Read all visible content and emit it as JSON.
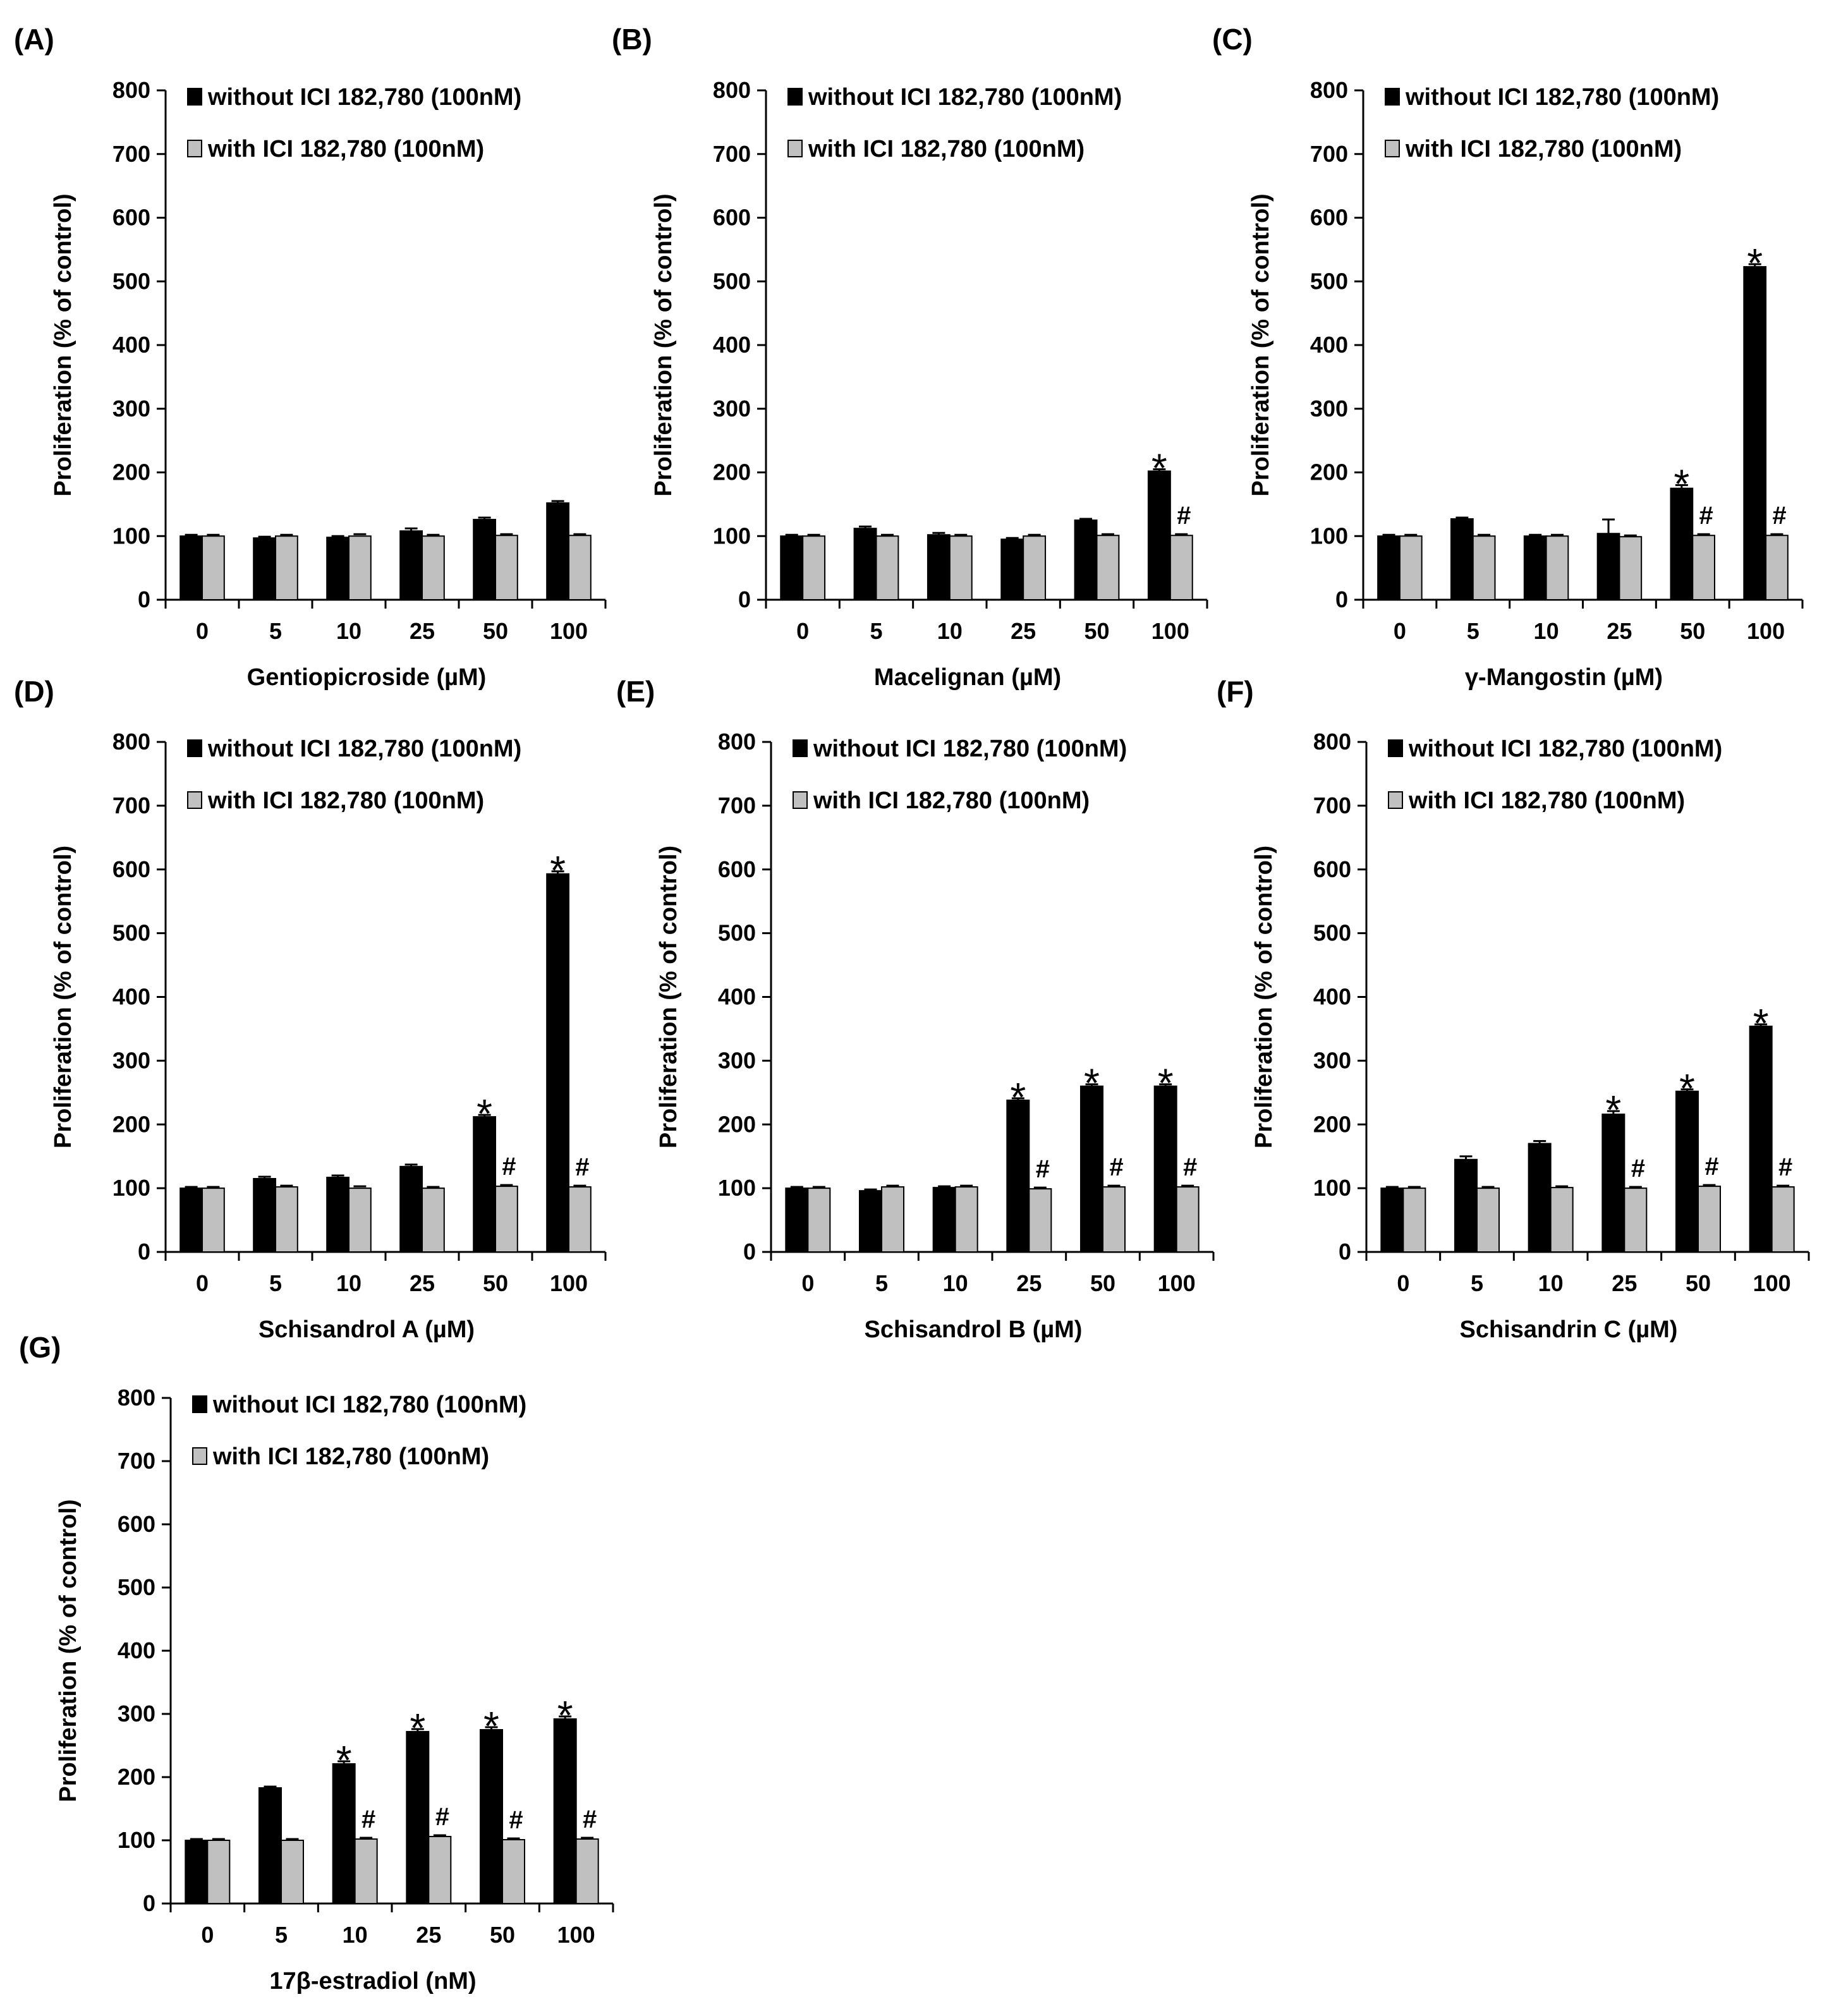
{
  "figure": {
    "colors": {
      "without": "#000000",
      "with": "#c0c0c0",
      "axis": "#000000"
    },
    "legend": {
      "without": "without ICI 182,780 (100nM)",
      "with": "with ICI 182,780 (100nM)"
    },
    "star_symbol": "*",
    "hash_symbol": "#"
  },
  "chart_data": [
    {
      "id": "A",
      "panel_label": "(A)",
      "type": "bar",
      "xlabel": "Gentiopicroside (µM)",
      "ylabel": "Proliferation (% of control)",
      "ylim": [
        0,
        800
      ],
      "yticks": [
        "0",
        "100",
        "200",
        "300",
        "400",
        "500",
        "600",
        "700",
        "800"
      ],
      "categories": [
        "0",
        "5",
        "10",
        "25",
        "50",
        "100"
      ],
      "series": [
        {
          "name": "without ICI 182,780 (100nM)",
          "values": [
            100,
            97,
            98,
            108,
            126,
            152
          ],
          "errors": [
            2,
            2,
            2,
            4,
            3,
            3
          ]
        },
        {
          "name": "with ICI 182,780 (100nM)",
          "values": [
            100,
            100,
            100,
            100,
            101,
            101
          ],
          "errors": [
            2,
            2,
            3,
            2,
            2,
            2
          ]
        }
      ],
      "stars": [
        false,
        false,
        false,
        false,
        false,
        false
      ],
      "hashes": [
        false,
        false,
        false,
        false,
        false,
        false
      ]
    },
    {
      "id": "B",
      "panel_label": "(B)",
      "type": "bar",
      "xlabel": "Macelignan (µM)",
      "ylabel": "Proliferation (% of control)",
      "ylim": [
        0,
        800
      ],
      "yticks": [
        "0",
        "100",
        "200",
        "300",
        "400",
        "500",
        "600",
        "700",
        "800"
      ],
      "categories": [
        "0",
        "5",
        "10",
        "25",
        "50",
        "100"
      ],
      "series": [
        {
          "name": "without ICI 182,780 (100nM)",
          "values": [
            100,
            112,
            102,
            95,
            125,
            202
          ],
          "errors": [
            2,
            3,
            3,
            2,
            2,
            3
          ]
        },
        {
          "name": "with ICI 182,780 (100nM)",
          "values": [
            100,
            100,
            100,
            100,
            101,
            101
          ],
          "errors": [
            2,
            2,
            2,
            2,
            2,
            2
          ]
        }
      ],
      "stars": [
        false,
        false,
        false,
        false,
        false,
        true
      ],
      "hashes": [
        false,
        false,
        false,
        false,
        false,
        true
      ]
    },
    {
      "id": "C",
      "panel_label": "(C)",
      "type": "bar",
      "xlabel": "γ-Mangostin (µM)",
      "ylabel": "Proliferation (% of control)",
      "ylim": [
        0,
        800
      ],
      "yticks": [
        "0",
        "100",
        "200",
        "300",
        "400",
        "500",
        "600",
        "700",
        "800"
      ],
      "categories": [
        "0",
        "5",
        "10",
        "25",
        "50",
        "100"
      ],
      "series": [
        {
          "name": "without ICI 182,780 (100nM)",
          "values": [
            100,
            127,
            100,
            104,
            175,
            523
          ],
          "errors": [
            2,
            2,
            2,
            22,
            5,
            4
          ]
        },
        {
          "name": "with ICI 182,780 (100nM)",
          "values": [
            100,
            100,
            100,
            99,
            101,
            101
          ],
          "errors": [
            2,
            2,
            2,
            2,
            2,
            2
          ]
        }
      ],
      "stars": [
        false,
        false,
        false,
        false,
        true,
        true
      ],
      "hashes": [
        false,
        false,
        false,
        false,
        true,
        true
      ]
    },
    {
      "id": "D",
      "panel_label": "(D)",
      "type": "bar",
      "xlabel": "Schisandrol A (µM)",
      "ylabel": "Proliferation (% of control)",
      "ylim": [
        0,
        800
      ],
      "yticks": [
        "0",
        "100",
        "200",
        "300",
        "400",
        "500",
        "600",
        "700",
        "800"
      ],
      "categories": [
        "0",
        "5",
        "10",
        "25",
        "50",
        "100"
      ],
      "series": [
        {
          "name": "without ICI 182,780 (100nM)",
          "values": [
            100,
            115,
            117,
            134,
            212,
            593
          ],
          "errors": [
            2,
            3,
            3,
            3,
            3,
            4
          ]
        },
        {
          "name": "with ICI 182,780 (100nM)",
          "values": [
            100,
            102,
            100,
            100,
            103,
            102
          ],
          "errors": [
            2,
            2,
            3,
            2,
            2,
            2
          ]
        }
      ],
      "stars": [
        false,
        false,
        false,
        false,
        true,
        true
      ],
      "hashes": [
        false,
        false,
        false,
        false,
        true,
        true
      ]
    },
    {
      "id": "E",
      "panel_label": "(E)",
      "type": "bar",
      "xlabel": "Schisandrol B (µM)",
      "ylabel": "Proliferation (% of control)",
      "ylim": [
        0,
        800
      ],
      "yticks": [
        "0",
        "100",
        "200",
        "300",
        "400",
        "500",
        "600",
        "700",
        "800"
      ],
      "categories": [
        "0",
        "5",
        "10",
        "25",
        "50",
        "100"
      ],
      "series": [
        {
          "name": "without ICI 182,780 (100nM)",
          "values": [
            100,
            96,
            101,
            238,
            260,
            260
          ],
          "errors": [
            2,
            2,
            2,
            3,
            3,
            3
          ]
        },
        {
          "name": "with ICI 182,780 (100nM)",
          "values": [
            100,
            102,
            102,
            99,
            102,
            102
          ],
          "errors": [
            2,
            2,
            2,
            2,
            2,
            2
          ]
        }
      ],
      "stars": [
        false,
        false,
        false,
        true,
        true,
        true
      ],
      "hashes": [
        false,
        false,
        false,
        true,
        true,
        true
      ]
    },
    {
      "id": "F",
      "panel_label": "(F)",
      "type": "bar",
      "xlabel": "Schisandrin C (µM)",
      "ylabel": "Proliferation (% of control)",
      "ylim": [
        0,
        800
      ],
      "yticks": [
        "0",
        "100",
        "200",
        "300",
        "400",
        "500",
        "600",
        "700",
        "800"
      ],
      "categories": [
        "0",
        "5",
        "10",
        "25",
        "50",
        "100"
      ],
      "series": [
        {
          "name": "without ICI 182,780 (100nM)",
          "values": [
            100,
            145,
            170,
            216,
            252,
            354
          ],
          "errors": [
            2,
            5,
            4,
            5,
            3,
            3
          ]
        },
        {
          "name": "with ICI 182,780 (100nM)",
          "values": [
            100,
            100,
            101,
            100,
            103,
            102
          ],
          "errors": [
            2,
            2,
            2,
            2,
            2,
            2
          ]
        }
      ],
      "stars": [
        false,
        false,
        false,
        true,
        true,
        true
      ],
      "hashes": [
        false,
        false,
        false,
        true,
        true,
        true
      ]
    },
    {
      "id": "G",
      "panel_label": "(G)",
      "type": "bar",
      "xlabel": "17β-estradiol (nM)",
      "ylabel": "Proliferation (% of control)",
      "ylim": [
        0,
        800
      ],
      "yticks": [
        "0",
        "100",
        "200",
        "300",
        "400",
        "500",
        "600",
        "700",
        "800"
      ],
      "categories": [
        "0",
        "5",
        "10",
        "25",
        "50",
        "100"
      ],
      "series": [
        {
          "name": "without ICI 182,780 (100nM)",
          "values": [
            100,
            183,
            221,
            272,
            275,
            292
          ],
          "errors": [
            2,
            2,
            4,
            4,
            4,
            4
          ]
        },
        {
          "name": "with ICI 182,780 (100nM)",
          "values": [
            100,
            100,
            102,
            106,
            101,
            102
          ],
          "errors": [
            2,
            2,
            2,
            2,
            2,
            2
          ]
        }
      ],
      "stars": [
        false,
        false,
        true,
        true,
        true,
        true
      ],
      "hashes": [
        false,
        false,
        true,
        true,
        true,
        true
      ]
    }
  ]
}
